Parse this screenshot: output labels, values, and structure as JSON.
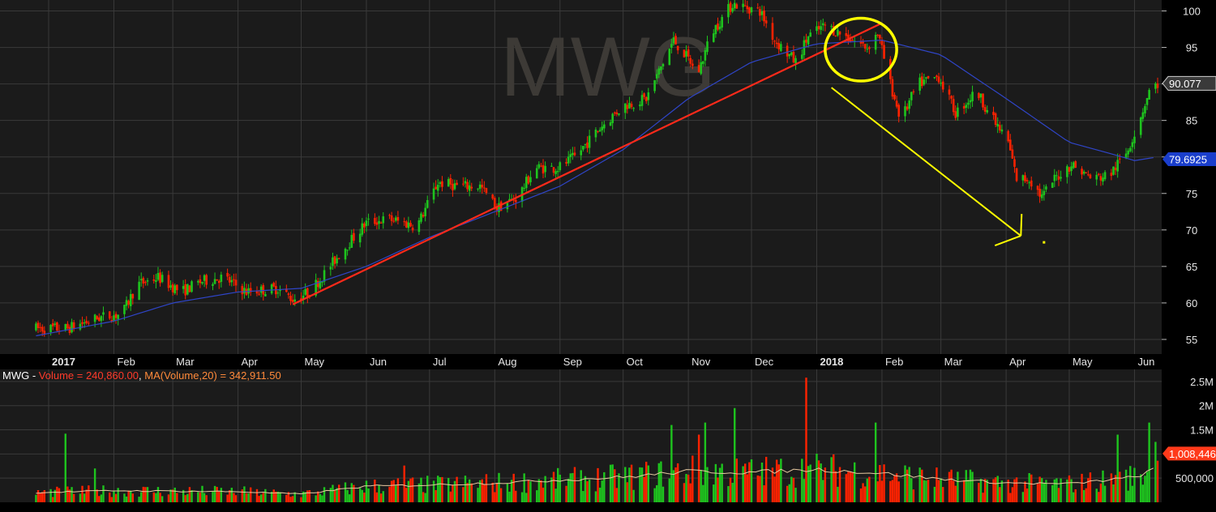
{
  "watermark": "MWG",
  "chart_data": {
    "type": "candlestick",
    "symbol": "MWG",
    "price_axis": {
      "min": 53,
      "max": 101.5,
      "ticks": [
        55,
        60,
        65,
        70,
        75,
        80,
        85,
        90,
        95,
        100
      ]
    },
    "time_axis": {
      "start": "2017-01-01",
      "end": "2018-06-12",
      "labels": [
        {
          "label": "2017",
          "date": "2017-01-01",
          "bold": true
        },
        {
          "label": "Feb",
          "date": "2017-02-01"
        },
        {
          "label": "Mar",
          "date": "2017-03-01"
        },
        {
          "label": "Apr",
          "date": "2017-04-01"
        },
        {
          "label": "May",
          "date": "2017-05-01"
        },
        {
          "label": "Jun",
          "date": "2017-06-01"
        },
        {
          "label": "Jul",
          "date": "2017-07-01"
        },
        {
          "label": "Aug",
          "date": "2017-08-01"
        },
        {
          "label": "Sep",
          "date": "2017-09-01"
        },
        {
          "label": "Oct",
          "date": "2017-10-01"
        },
        {
          "label": "Nov",
          "date": "2017-11-01"
        },
        {
          "label": "Dec",
          "date": "2017-12-01"
        },
        {
          "label": "2018",
          "date": "2018-01-01",
          "bold": true
        },
        {
          "label": "Feb",
          "date": "2018-02-01"
        },
        {
          "label": "Mar",
          "date": "2018-03-01"
        },
        {
          "label": "Apr",
          "date": "2018-04-01"
        },
        {
          "label": "May",
          "date": "2018-05-01"
        },
        {
          "label": "Jun",
          "date": "2018-06-01"
        }
      ]
    },
    "price_path": [
      [
        "2016-12-26",
        56.5
      ],
      [
        "2017-01-10",
        56.5
      ],
      [
        "2017-01-25",
        58
      ],
      [
        "2017-02-05",
        58.5
      ],
      [
        "2017-02-12",
        62.5
      ],
      [
        "2017-02-22",
        63.5
      ],
      [
        "2017-03-05",
        61.5
      ],
      [
        "2017-03-15",
        63
      ],
      [
        "2017-03-25",
        63.5
      ],
      [
        "2017-04-05",
        61.5
      ],
      [
        "2017-04-20",
        62
      ],
      [
        "2017-04-27",
        60.5
      ],
      [
        "2017-05-05",
        61.5
      ],
      [
        "2017-05-12",
        64
      ],
      [
        "2017-05-20",
        67
      ],
      [
        "2017-06-01",
        71
      ],
      [
        "2017-06-12",
        71.5
      ],
      [
        "2017-06-25",
        70.5
      ],
      [
        "2017-07-05",
        76.5
      ],
      [
        "2017-07-15",
        76
      ],
      [
        "2017-07-25",
        76
      ],
      [
        "2017-08-02",
        73
      ],
      [
        "2017-08-12",
        74.5
      ],
      [
        "2017-08-20",
        78.5
      ],
      [
        "2017-08-31",
        78.5
      ],
      [
        "2017-09-08",
        80
      ],
      [
        "2017-09-20",
        84
      ],
      [
        "2017-10-01",
        87
      ],
      [
        "2017-10-12",
        88
      ],
      [
        "2017-10-25",
        96
      ],
      [
        "2017-11-02",
        93
      ],
      [
        "2017-11-05",
        91
      ],
      [
        "2017-11-12",
        97
      ],
      [
        "2017-11-22",
        101
      ],
      [
        "2017-12-05",
        100
      ],
      [
        "2017-12-12",
        96
      ],
      [
        "2017-12-22",
        93
      ],
      [
        "2017-12-28",
        96.5
      ],
      [
        "2018-01-05",
        98
      ],
      [
        "2018-01-15",
        96.5
      ],
      [
        "2018-01-25",
        95
      ],
      [
        "2018-01-30",
        97
      ],
      [
        "2018-02-05",
        90
      ],
      [
        "2018-02-10",
        85
      ],
      [
        "2018-02-18",
        90
      ],
      [
        "2018-02-28",
        91
      ],
      [
        "2018-03-08",
        86
      ],
      [
        "2018-03-18",
        89
      ],
      [
        "2018-03-26",
        85
      ],
      [
        "2018-04-02",
        82
      ],
      [
        "2018-04-06",
        77
      ],
      [
        "2018-04-12",
        77
      ],
      [
        "2018-04-18",
        74.5
      ],
      [
        "2018-04-24",
        77
      ],
      [
        "2018-05-02",
        79
      ],
      [
        "2018-05-12",
        77
      ],
      [
        "2018-05-20",
        77.5
      ],
      [
        "2018-05-28",
        80.5
      ],
      [
        "2018-06-02",
        84
      ],
      [
        "2018-06-08",
        89
      ],
      [
        "2018-06-12",
        90
      ]
    ],
    "ma_path": [
      [
        "2016-12-26",
        55.5
      ],
      [
        "2017-02-01",
        57.5
      ],
      [
        "2017-03-01",
        60
      ],
      [
        "2017-04-01",
        61.5
      ],
      [
        "2017-05-01",
        62
      ],
      [
        "2017-06-01",
        65
      ],
      [
        "2017-07-01",
        69
      ],
      [
        "2017-08-01",
        72.5
      ],
      [
        "2017-09-01",
        76
      ],
      [
        "2017-10-01",
        81
      ],
      [
        "2017-11-01",
        88
      ],
      [
        "2017-12-01",
        93
      ],
      [
        "2018-01-01",
        95.5
      ],
      [
        "2018-02-01",
        96
      ],
      [
        "2018-03-01",
        94
      ],
      [
        "2018-04-01",
        88
      ],
      [
        "2018-05-01",
        82
      ],
      [
        "2018-05-20",
        80.5
      ],
      [
        "2018-06-01",
        79.5
      ],
      [
        "2018-06-12",
        80
      ]
    ],
    "last_price": 90.077,
    "ma_value": 79.6925,
    "trendline": {
      "from": [
        "2017-04-27",
        59.8
      ],
      "to": [
        "2018-01-31",
        98.2
      ]
    },
    "annotations": [
      {
        "type": "ellipse",
        "center": [
          "2018-01-22",
          94.7
        ],
        "rx_days": 17,
        "ry": 4.3
      },
      {
        "type": "arrow",
        "from": [
          "2018-01-08",
          89.5
        ],
        "to": [
          "2018-04-08",
          69.2
        ]
      },
      {
        "type": "dot",
        "at": [
          "2018-04-19",
          68.3
        ]
      }
    ],
    "volume": {
      "label_prefix": "MWG - ",
      "label_volume": "Volume = 240,860.00",
      "label_sep": ", ",
      "label_ma": "MA(Volume,20) = 342,911.50",
      "axis": {
        "max": 2750000,
        "ticks": [
          "2.5M",
          "2M",
          "1.5M",
          "1M",
          "500,000"
        ],
        "tick_values": [
          2500000,
          2000000,
          1500000,
          1000000,
          500000
        ]
      },
      "current_badge": "1,008,446",
      "current_value": 1008446,
      "ma_path": [
        [
          "2016-12-26",
          200000
        ],
        [
          "2017-02-01",
          240000
        ],
        [
          "2017-04-01",
          220000
        ],
        [
          "2017-05-01",
          170000
        ],
        [
          "2017-06-01",
          330000
        ],
        [
          "2017-07-01",
          360000
        ],
        [
          "2017-08-01",
          400000
        ],
        [
          "2017-09-01",
          460000
        ],
        [
          "2017-10-01",
          520000
        ],
        [
          "2017-11-01",
          640000
        ],
        [
          "2017-12-01",
          620000
        ],
        [
          "2018-01-01",
          680000
        ],
        [
          "2018-02-01",
          600000
        ],
        [
          "2018-03-01",
          480000
        ],
        [
          "2018-04-01",
          400000
        ],
        [
          "2018-05-01",
          380000
        ],
        [
          "2018-06-01",
          520000
        ],
        [
          "2018-06-12",
          700000
        ]
      ],
      "spikes": [
        [
          "2017-01-08",
          1420000
        ],
        [
          "2017-01-23",
          700000
        ],
        [
          "2017-06-18",
          760000
        ],
        [
          "2017-10-25",
          1600000
        ],
        [
          "2017-11-06",
          1400000
        ],
        [
          "2017-11-10",
          1650000
        ],
        [
          "2017-11-24",
          1950000
        ],
        [
          "2017-12-28",
          2580000
        ],
        [
          "2018-01-30",
          1650000
        ],
        [
          "2018-05-25",
          1400000
        ],
        [
          "2018-06-09",
          1650000
        ],
        [
          "2018-06-11",
          1250000
        ]
      ]
    },
    "colors": {
      "background": "#000000",
      "panel": "#1b1b1b",
      "grid": "#3a3a3a",
      "up": "#1ec41e",
      "down": "#ff2200",
      "ma": "#2f45c8",
      "trendline": "#ff2a1a",
      "annotation": "#ffff00",
      "axis_text": "#e6e6e6",
      "volume_ma": "#e7c9a0",
      "volume_label": "#ff3a2a",
      "ma_label": "#ff8a3a",
      "price_badge": "#3a3a3a",
      "ma_badge": "#1a3ecc",
      "volume_badge": "#ff3a1a"
    }
  }
}
